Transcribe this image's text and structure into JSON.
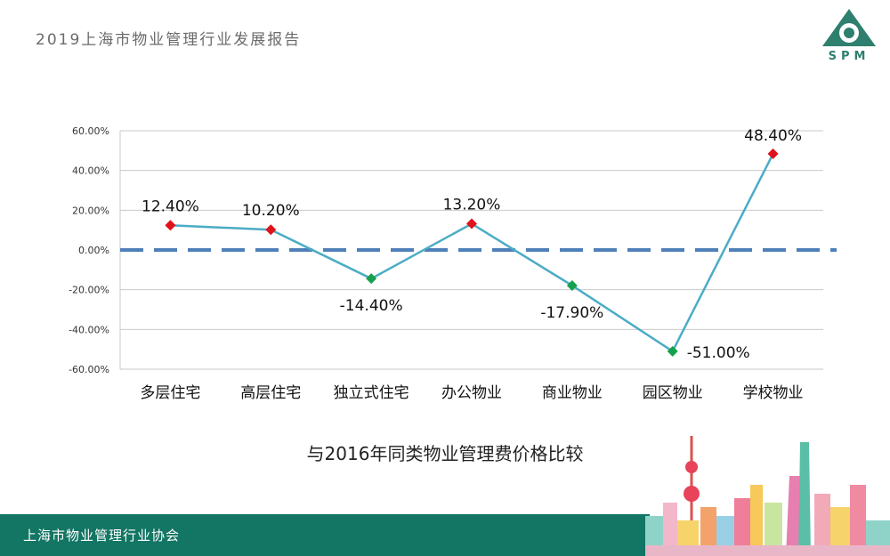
{
  "header": {
    "title": "2019上海市物业管理行业发展报告"
  },
  "logo": {
    "text": "SPM",
    "icon": "spm-logo-icon",
    "color": "#2e7f6e"
  },
  "footer": {
    "text": "上海市物业管理行业协会",
    "color": "#137564"
  },
  "chart_data": {
    "type": "line",
    "title": "与2016年同类物业管理费价格比较",
    "xlabel": "",
    "ylabel": "",
    "categories": [
      "多层住宅",
      "高层住宅",
      "独立式住宅",
      "办公物业",
      "商业物业",
      "园区物业",
      "学校物业"
    ],
    "values": [
      12.4,
      10.2,
      -14.4,
      13.2,
      -17.9,
      -51.0,
      48.4
    ],
    "data_labels": [
      "12.40%",
      "10.20%",
      "-14.40%",
      "13.20%",
      "-17.90%",
      "-51.00%",
      "48.40%"
    ],
    "ylim": [
      -60,
      60
    ],
    "yticks": [
      60,
      40,
      20,
      0,
      -20,
      -40,
      -60
    ],
    "ytick_labels": [
      "60.00%",
      "40.00%",
      "20.00%",
      "0.00%",
      "-20.00%",
      "-40.00%",
      "-60.00%"
    ],
    "grid": true,
    "zero_line": "dashed",
    "colors": {
      "line": "#4bacc6",
      "positive_marker": "#e0121b",
      "negative_marker": "#17a04d",
      "zero_line": "#4f7fb8",
      "grid": "#c9c9c9"
    }
  }
}
